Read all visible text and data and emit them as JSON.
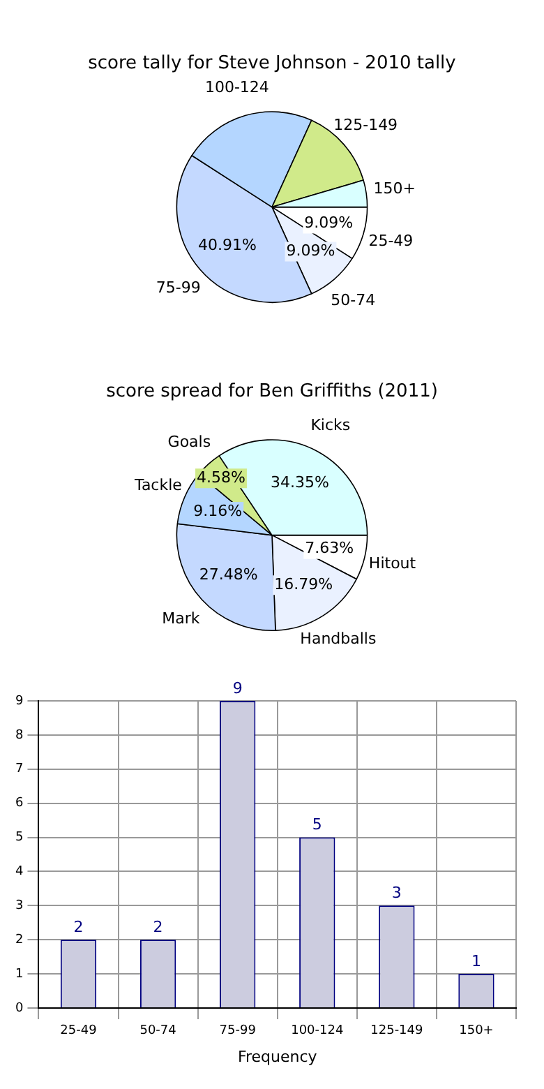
{
  "chart_data": [
    {
      "type": "pie",
      "title": "score tally for Steve Johnson - 2010 tally",
      "categories": [
        "25-49",
        "50-74",
        "75-99",
        "100-124",
        "125-149",
        "150+"
      ],
      "values": [
        9.09,
        9.09,
        40.91,
        22.73,
        13.64,
        4.55
      ],
      "colors": [
        "#ffffff",
        "#eaf1ff",
        "#c4d9ff",
        "#b4d6ff",
        "#d0ea8a",
        "#d9ffff"
      ],
      "value_labels": [
        "9.09%",
        "9.09%",
        "40.91%",
        null,
        null,
        null
      ]
    },
    {
      "type": "pie",
      "title": "score spread for Ben Griffiths (2011)",
      "categories": [
        "Hitout",
        "Handballs",
        "Mark",
        "Tackle",
        "Goals",
        "Kicks"
      ],
      "values": [
        7.63,
        16.79,
        27.48,
        9.16,
        4.58,
        34.35
      ],
      "colors": [
        "#ffffff",
        "#eaf1ff",
        "#c4d9ff",
        "#b4d6ff",
        "#d0ea8a",
        "#d9ffff"
      ],
      "value_labels": [
        "7.63%",
        "16.79%",
        "27.48%",
        "9.16%",
        "4.58%",
        "34.35%"
      ]
    },
    {
      "type": "bar",
      "xlabel": "Frequency",
      "categories": [
        "25-49",
        "50-74",
        "75-99",
        "100-124",
        "125-149",
        "150+"
      ],
      "values": [
        2,
        2,
        9,
        5,
        3,
        1
      ],
      "color": "#ccccdf",
      "data_labels": true,
      "ylim": [
        0,
        9
      ],
      "yticks": [
        0,
        1,
        2,
        3,
        4,
        5,
        6,
        7,
        8,
        9
      ],
      "grid": true
    }
  ]
}
